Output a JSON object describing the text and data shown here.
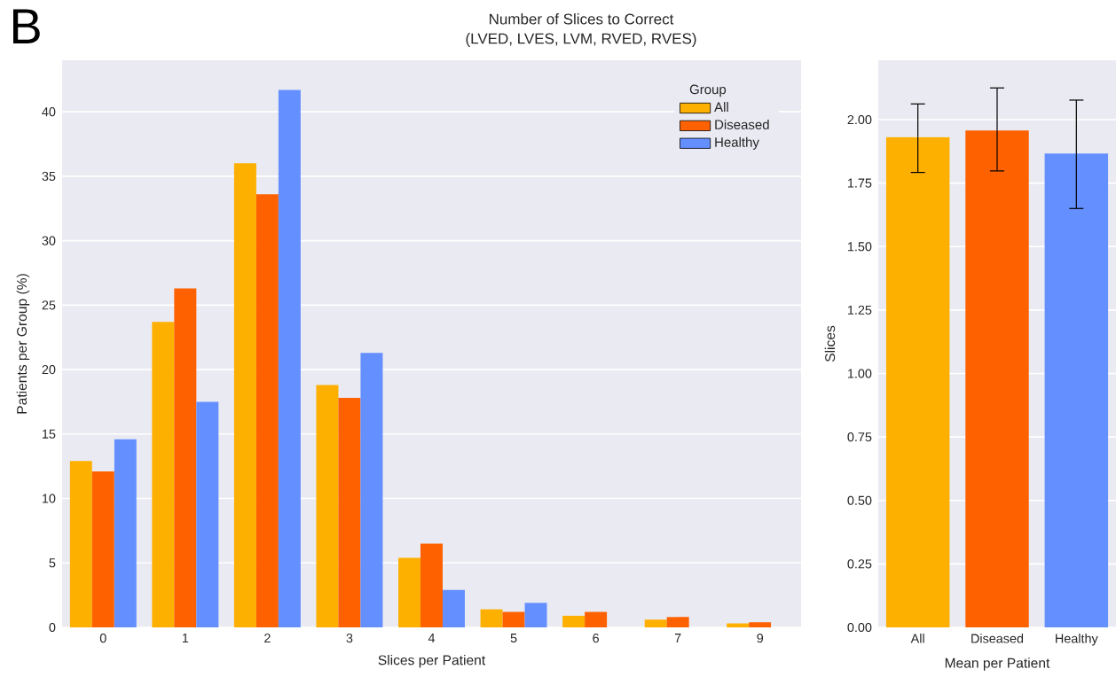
{
  "chart_data": [
    {
      "type": "bar",
      "title": "Number of Slices to Correct",
      "subtitle": "(LVED, LVES, LVM, RVED, RVES)",
      "annotations": [
        "B"
      ],
      "categories": [
        "0",
        "1",
        "2",
        "3",
        "4",
        "5",
        "6",
        "7",
        "9"
      ],
      "series": [
        {
          "name": "All",
          "color": "#feb000",
          "values": [
            12.9,
            23.7,
            36.0,
            18.8,
            5.4,
            1.4,
            0.9,
            0.6,
            0.3
          ]
        },
        {
          "name": "Diseased",
          "color": "#fe6100",
          "values": [
            12.1,
            26.3,
            33.6,
            17.8,
            6.5,
            1.2,
            1.2,
            0.8,
            0.4
          ]
        },
        {
          "name": "Healthy",
          "color": "#648fff",
          "values": [
            14.6,
            17.5,
            41.7,
            21.3,
            2.9,
            1.9,
            0,
            0,
            0
          ]
        }
      ],
      "xlabel": "Slices per Patient",
      "ylabel": "Patients per Group (%)",
      "ylim": [
        0,
        44
      ],
      "yticks": [
        0,
        5,
        10,
        15,
        20,
        25,
        30,
        35,
        40
      ],
      "grid": "y",
      "legend": "top right",
      "legend_title": "Group"
    },
    {
      "type": "bar",
      "categories": [
        "All",
        "Diseased",
        "Healthy"
      ],
      "values": [
        1.931,
        1.957,
        1.867
      ],
      "colors": [
        "#feb000",
        "#fe6100",
        "#648fff"
      ],
      "errors": [
        [
          1.792,
          2.062
        ],
        [
          1.798,
          2.125
        ],
        [
          1.65,
          2.077
        ]
      ],
      "xlabel": "Mean per Patient",
      "ylabel": "Slices",
      "ylim": [
        0,
        2.234
      ],
      "yticks": [
        {
          "value": 0,
          "label": "0.00"
        },
        {
          "value": 0.25,
          "label": "0.25"
        },
        {
          "value": 0.5,
          "label": "0.50"
        },
        {
          "value": 0.75,
          "label": "0.75"
        },
        {
          "value": 1,
          "label": "1.00"
        },
        {
          "value": 1.25,
          "label": "1.25"
        },
        {
          "value": 1.5,
          "label": "1.50"
        },
        {
          "value": 1.75,
          "label": "1.75"
        },
        {
          "value": 2,
          "label": "2.00"
        }
      ],
      "grid": "y"
    }
  ]
}
